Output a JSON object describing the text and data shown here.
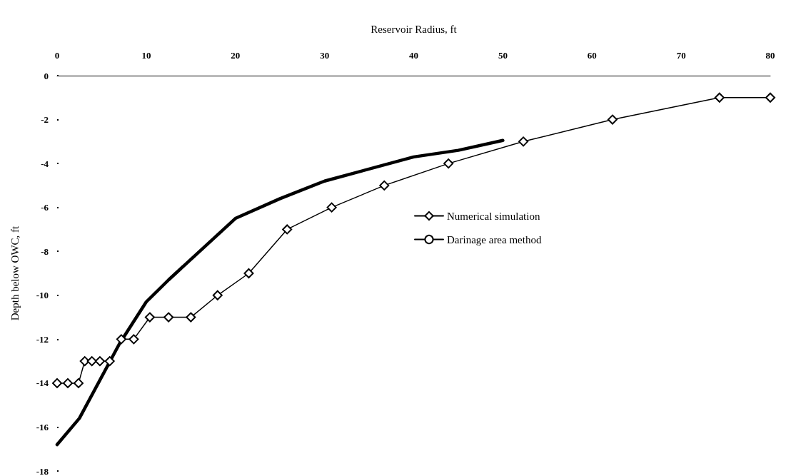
{
  "chart_data": {
    "type": "line",
    "xlabel": "Reservoir Radius, ft",
    "ylabel": "Depth below OWC, ft",
    "xlim": [
      0,
      80
    ],
    "xticks": [
      0,
      10,
      20,
      30,
      40,
      50,
      60,
      70,
      80
    ],
    "ylim": [
      -18,
      0
    ],
    "yticks": [
      -18,
      -16,
      -14,
      -12,
      -10,
      -8,
      -6,
      -4,
      -2,
      0
    ],
    "grid": false,
    "legend": "right",
    "series": [
      {
        "name": "Numerical simulation",
        "color": "#000000",
        "marker": "diamond",
        "x": [
          0,
          1.2,
          2.4,
          3.1,
          3.9,
          4.8,
          5.9,
          7.2,
          8.6,
          10.4,
          12.5,
          15,
          18,
          21.5,
          25.8,
          30.8,
          36.7,
          43.9,
          52.3,
          62.3,
          74.3,
          80
        ],
        "values": [
          -14,
          -14,
          -14,
          -13,
          -13,
          -13,
          -13,
          -12,
          -12,
          -11,
          -11,
          -11,
          -10,
          -9,
          -7,
          -6,
          -5,
          -4,
          -3,
          -2,
          -1,
          -1
        ]
      },
      {
        "name": "Darinage area method",
        "color": "#000000",
        "marker": "none",
        "x": [
          0,
          2.5,
          7,
          10,
          12.5,
          20,
          25,
          30,
          40,
          45,
          50
        ],
        "values": [
          -16.8,
          -15.6,
          -12.2,
          -10.3,
          -9.3,
          -6.5,
          -5.6,
          -4.8,
          -3.7,
          -3.4,
          -2.95
        ]
      }
    ]
  }
}
